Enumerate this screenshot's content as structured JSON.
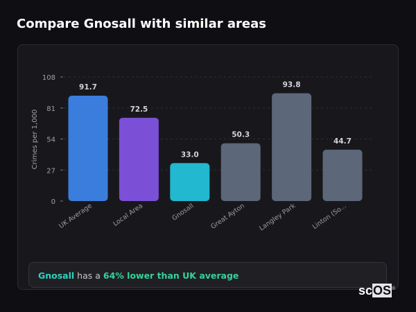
{
  "title": "Compare Gnosall with similar areas",
  "chart_data": {
    "type": "bar",
    "title": "",
    "xlabel": "",
    "ylabel": "Crimes per 1,000",
    "ylim": [
      0,
      108
    ],
    "yticks": [
      0,
      27,
      54,
      81,
      108
    ],
    "grid": true,
    "categories": [
      "UK Average",
      "Local Area",
      "Gnosall",
      "Great Ayton",
      "Langley Park",
      "Linton (So..."
    ],
    "values": [
      91.7,
      72.5,
      33.0,
      50.3,
      93.8,
      44.7
    ],
    "colors": [
      "#3b7ddd",
      "#7b4fd6",
      "#22b8cf",
      "#5c6779",
      "#5c6779",
      "#5c6779"
    ]
  },
  "summary": {
    "area": "Gnosall",
    "middle": " has a ",
    "comparison": "64% lower than UK average"
  },
  "logo": {
    "text_a": "sc",
    "text_b": "OS",
    "mark": "®"
  }
}
